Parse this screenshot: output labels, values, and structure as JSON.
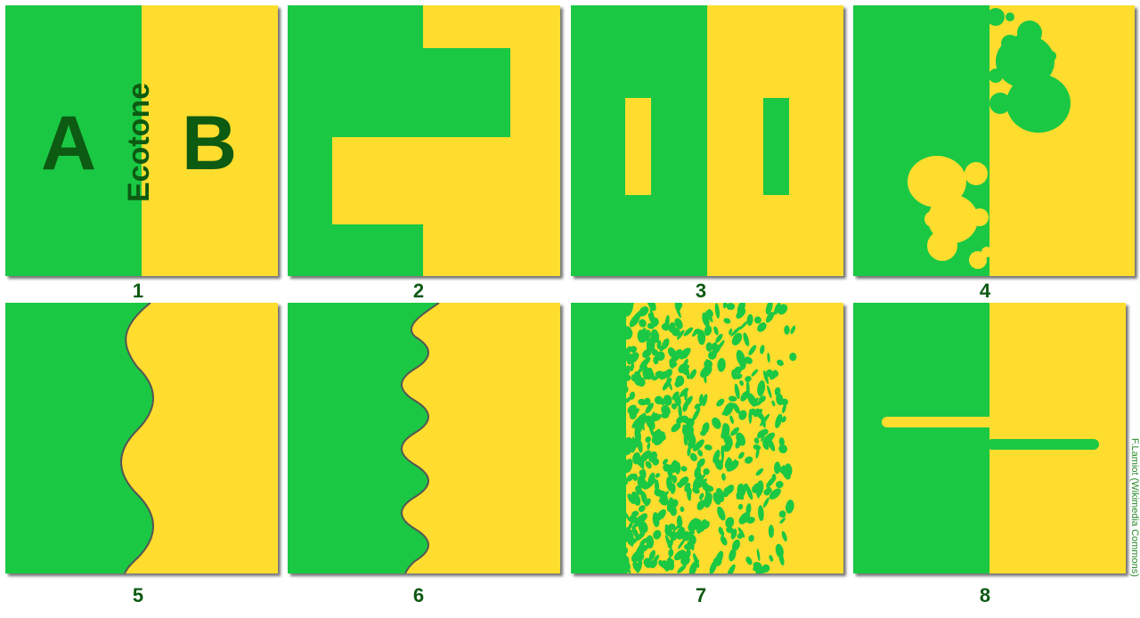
{
  "colors": {
    "green": "#1ac844",
    "yellow": "#fedd2e",
    "dark_green": "#0d5a12"
  },
  "panel1": {
    "label_a": "A",
    "label_b": "B",
    "boundary_label": "Ecotone"
  },
  "panel_numbers": [
    "1",
    "2",
    "3",
    "4",
    "5",
    "6",
    "7",
    "8"
  ],
  "credit": "F.Lamiot (Wikimedia Commons)"
}
